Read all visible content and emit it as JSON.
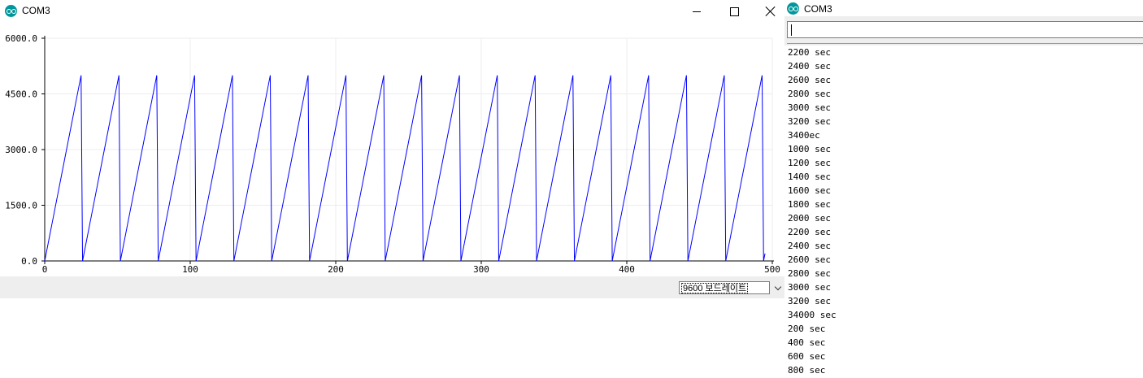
{
  "plotter": {
    "title": "COM3",
    "baud": "9600 보드레이트"
  },
  "monitor": {
    "title": "COM3",
    "input_value": "",
    "lines": [
      "2200 sec",
      "2400 sec",
      "2600 sec",
      "2800 sec",
      "3000 sec",
      "3200 sec",
      "3400ec",
      "1000 sec",
      "1200 sec",
      "1400 sec",
      "1600 sec",
      "1800 sec",
      "2000 sec",
      "2200 sec",
      "2400 sec",
      "2600 sec",
      "2800 sec",
      "3000 sec",
      "3200 sec",
      "34000 sec",
      "200 sec",
      "400 sec",
      "600 sec",
      "800 sec"
    ]
  },
  "chart_data": {
    "type": "line",
    "xlim": [
      0,
      500
    ],
    "ylim": [
      0,
      6000
    ],
    "x_ticks": [
      0,
      100,
      200,
      300,
      400,
      500
    ],
    "x_tick_labels": [
      "0",
      "100",
      "200",
      "300",
      "400",
      "500"
    ],
    "y_ticks": [
      0,
      1500,
      3000,
      4500,
      6000
    ],
    "y_tick_labels": [
      "0.0",
      "1500.0",
      "3000.0",
      "4500.0",
      "6000.0"
    ],
    "grid": true,
    "line_color": "#0000ff",
    "series": [
      {
        "values": [
          0,
          200,
          400,
          600,
          800,
          1000,
          1200,
          1400,
          1600,
          1800,
          2000,
          2200,
          2400,
          2600,
          2800,
          3000,
          3200,
          3400,
          3600,
          3800,
          4000,
          4200,
          4400,
          4600,
          4800,
          5000,
          0,
          200,
          400,
          600,
          800,
          1000,
          1200,
          1400,
          1600,
          1800,
          2000,
          2200,
          2400,
          2600,
          2800,
          3000,
          3200,
          3400,
          3600,
          3800,
          4000,
          4200,
          4400,
          4600,
          4800,
          5000,
          0,
          200,
          400,
          600,
          800,
          1000,
          1200,
          1400,
          1600,
          1800,
          2000,
          2200,
          2400,
          2600,
          2800,
          3000,
          3200,
          3400,
          3600,
          3800,
          4000,
          4200,
          4400,
          4600,
          4800,
          5000,
          0,
          200,
          400,
          600,
          800,
          1000,
          1200,
          1400,
          1600,
          1800,
          2000,
          2200,
          2400,
          2600,
          2800,
          3000,
          3200,
          3400,
          3600,
          3800,
          4000,
          4200,
          4400,
          4600,
          4800,
          5000,
          0,
          200,
          400,
          600,
          800,
          1000,
          1200,
          1400,
          1600,
          1800,
          2000,
          2200,
          2400,
          2600,
          2800,
          3000,
          3200,
          3400,
          3600,
          3800,
          4000,
          4200,
          4400,
          4600,
          4800,
          5000,
          0,
          200,
          400,
          600,
          800,
          1000,
          1200,
          1400,
          1600,
          1800,
          2000,
          2200,
          2400,
          2600,
          2800,
          3000,
          3200,
          3400,
          3600,
          3800,
          4000,
          4200,
          4400,
          4600,
          4800,
          5000,
          0,
          200,
          400,
          600,
          800,
          1000,
          1200,
          1400,
          1600,
          1800,
          2000,
          2200,
          2400,
          2600,
          2800,
          3000,
          3200,
          3400,
          3600,
          3800,
          4000,
          4200,
          4400,
          4600,
          4800,
          5000,
          0,
          200,
          400,
          600,
          800,
          1000,
          1200,
          1400,
          1600,
          1800,
          2000,
          2200,
          2400,
          2600,
          2800,
          3000,
          3200,
          3400,
          3600,
          3800,
          4000,
          4200,
          4400,
          4600,
          4800,
          5000,
          0,
          200,
          400,
          600,
          800,
          1000,
          1200,
          1400,
          1600,
          1800,
          2000,
          2200,
          2400,
          2600,
          2800,
          3000,
          3200,
          3400,
          3600,
          3800,
          4000,
          4200,
          4400,
          4600,
          4800,
          5000,
          0,
          200,
          400,
          600,
          800,
          1000,
          1200,
          1400,
          1600,
          1800,
          2000,
          2200,
          2400,
          2600,
          2800,
          3000,
          3200,
          3400,
          3600,
          3800,
          4000,
          4200,
          4400,
          4600,
          4800,
          5000,
          0,
          200,
          400,
          600,
          800,
          1000,
          1200,
          1400,
          1600,
          1800,
          2000,
          2200,
          2400,
          2600,
          2800,
          3000,
          3200,
          3400,
          3600,
          3800,
          4000,
          4200,
          4400,
          4600,
          4800,
          5000,
          0,
          200,
          400,
          600,
          800,
          1000,
          1200,
          1400,
          1600,
          1800,
          2000,
          2200,
          2400,
          2600,
          2800,
          3000,
          3200,
          3400,
          3600,
          3800,
          4000,
          4200,
          4400,
          4600,
          4800,
          5000,
          0,
          200,
          400,
          600,
          800,
          1000,
          1200,
          1400,
          1600,
          1800,
          2000,
          2200,
          2400,
          2600,
          2800,
          3000,
          3200,
          3400,
          3600,
          3800,
          4000,
          4200,
          4400,
          4600,
          4800,
          5000,
          0,
          200,
          400,
          600,
          800,
          1000,
          1200,
          1400,
          1600,
          1800,
          2000,
          2200,
          2400,
          2600,
          2800,
          3000,
          3200,
          3400,
          3600,
          3800,
          4000,
          4200,
          4400,
          4600,
          4800,
          5000,
          0,
          200,
          400,
          600,
          800,
          1000,
          1200,
          1400,
          1600,
          1800,
          2000,
          2200,
          2400,
          2600,
          2800,
          3000,
          3200,
          3400,
          3600,
          3800,
          4000,
          4200,
          4400,
          4600,
          4800,
          5000,
          0,
          200,
          400,
          600,
          800,
          1000,
          1200,
          1400,
          1600,
          1800,
          2000,
          2200,
          2400,
          2600,
          2800,
          3000,
          3200,
          3400,
          3600,
          3800,
          4000,
          4200,
          4400,
          4600,
          4800,
          5000,
          0,
          200,
          400,
          600,
          800,
          1000,
          1200,
          1400,
          1600,
          1800,
          2000,
          2200,
          2400,
          2600,
          2800,
          3000,
          3200,
          3400,
          3600,
          3800,
          4000,
          4200,
          4400,
          4600,
          4800,
          5000,
          0,
          200,
          400,
          600,
          800,
          1000,
          1200,
          1400,
          1600,
          1800,
          2000,
          2200,
          2400,
          2600,
          2800,
          3000,
          3200,
          3400,
          3600,
          3800,
          4000,
          4200,
          4400,
          4600,
          4800,
          5000,
          0,
          200,
          400,
          600,
          800,
          1000,
          1200,
          1400,
          1600,
          1800,
          2000,
          2200,
          2400,
          2600,
          2800,
          3000,
          3200,
          3400,
          3600,
          3800,
          4000,
          4200,
          4400,
          4600,
          4800,
          5000,
          0,
          200
        ]
      }
    ]
  }
}
